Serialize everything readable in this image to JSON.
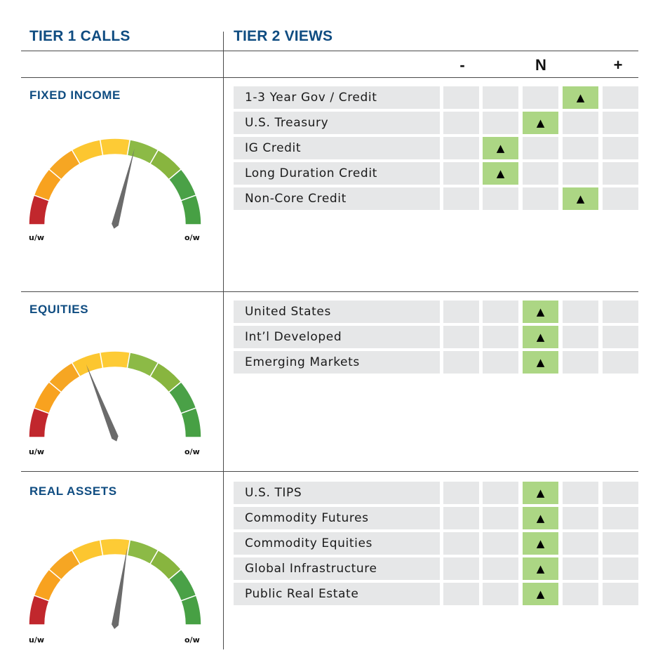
{
  "header": {
    "tier1": "TIER 1 CALLS",
    "tier2": "TIER 2 VIEWS"
  },
  "scale_labels": [
    "-",
    "N",
    "+"
  ],
  "scale_positions": 5,
  "colors": {
    "heading": "#0f4c81",
    "cell_bg": "#e6e7e8",
    "cell_active": "#acd684",
    "needle": "#6b6b6b",
    "gauge_segments": [
      "#c1272d",
      "#f8a21f",
      "#f6a623",
      "#fcc630",
      "#fdcb35",
      "#8cba46",
      "#88b53f",
      "#4aa147",
      "#47a044"
    ]
  },
  "sections": [
    {
      "title": "FIXED INCOME",
      "gauge": {
        "left_label": "u/w",
        "right_label": "o/w",
        "needle_level": 0.58
      },
      "rows": [
        {
          "label": "1-3 Year Gov / Credit",
          "position": 4
        },
        {
          "label": "U.S. Treasury",
          "position": 3
        },
        {
          "label": "IG Credit",
          "position": 2
        },
        {
          "label": "Long Duration Credit",
          "position": 2
        },
        {
          "label": "Non-Core Credit",
          "position": 4
        }
      ]
    },
    {
      "title": "EQUITIES",
      "gauge": {
        "left_label": "u/w",
        "right_label": "o/w",
        "needle_level": 0.38
      },
      "rows": [
        {
          "label": "United States",
          "position": 3
        },
        {
          "label": "Int’l Developed",
          "position": 3
        },
        {
          "label": "Emerging Markets",
          "position": 3
        }
      ]
    },
    {
      "title": "REAL ASSETS",
      "gauge": {
        "left_label": "u/w",
        "right_label": "o/w",
        "needle_level": 0.55
      },
      "rows": [
        {
          "label": "U.S. TIPS",
          "position": 3
        },
        {
          "label": "Commodity Futures",
          "position": 3
        },
        {
          "label": "Commodity Equities",
          "position": 3
        },
        {
          "label": "Global Infrastructure",
          "position": 3
        },
        {
          "label": "Public Real Estate",
          "position": 3
        }
      ]
    }
  ]
}
